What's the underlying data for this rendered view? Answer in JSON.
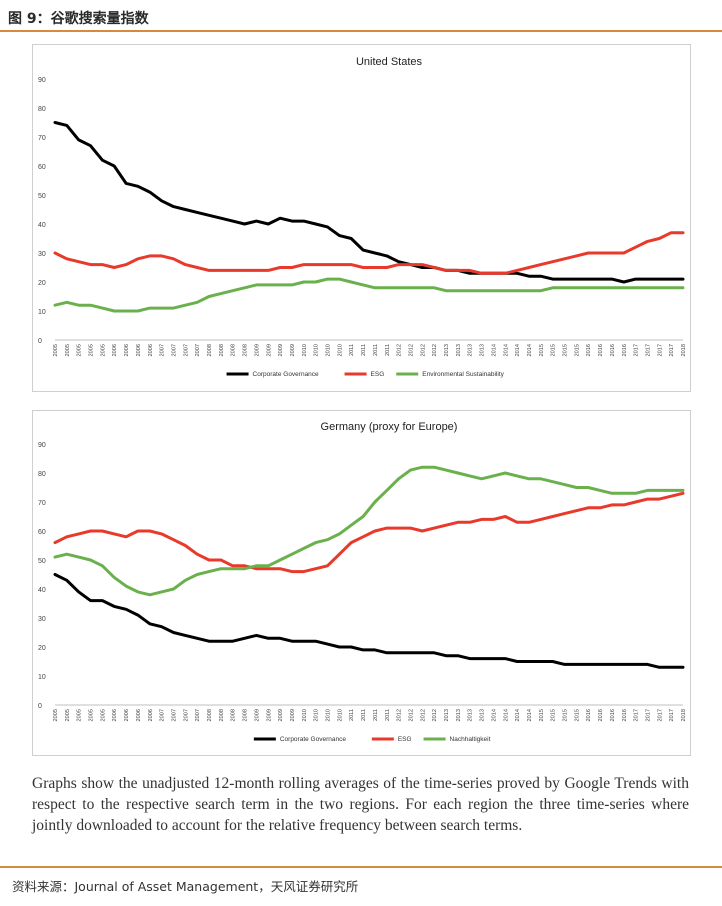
{
  "figure_title": "图 9：谷歌搜索量指数",
  "caption": "Graphs show the unadjusted 12-month rolling averages of the time-series proved by Google Trends with respect to the respective search term in the two regions. For each region the three time-series where jointly downloaded to account for the relative frequency between search terms.",
  "source": "资料来源：Journal of Asset Management，天风证券研究所",
  "colors": {
    "accent": "#d58b3d",
    "black": "#000000",
    "red": "#e8392b",
    "green": "#6ab04c"
  },
  "chart_data": [
    {
      "type": "line",
      "title": "United States",
      "ylim": [
        0,
        90
      ],
      "yticks": [
        0,
        10,
        20,
        30,
        40,
        50,
        60,
        70,
        80,
        90
      ],
      "x_tick_labels": [
        "2005",
        "2005",
        "2005",
        "2005",
        "2005",
        "2006",
        "2006",
        "2006",
        "2006",
        "2007",
        "2007",
        "2007",
        "2007",
        "2008",
        "2008",
        "2008",
        "2008",
        "2009",
        "2009",
        "2009",
        "2009",
        "2010",
        "2010",
        "2010",
        "2010",
        "2011",
        "2011",
        "2011",
        "2011",
        "2012",
        "2012",
        "2012",
        "2012",
        "2013",
        "2013",
        "2013",
        "2013",
        "2014",
        "2014",
        "2014",
        "2014",
        "2015",
        "2015",
        "2015",
        "2015",
        "2016",
        "2016",
        "2016",
        "2016",
        "2017",
        "2017",
        "2017",
        "2017",
        "2018"
      ],
      "series": [
        {
          "name": "Corporate Governance",
          "color": "#000000",
          "values": [
            75,
            74,
            69,
            67,
            62,
            60,
            54,
            53,
            51,
            48,
            46,
            45,
            44,
            43,
            42,
            41,
            40,
            41,
            40,
            42,
            41,
            41,
            40,
            39,
            36,
            35,
            31,
            30,
            29,
            27,
            26,
            25,
            25,
            24,
            24,
            23,
            23,
            23,
            23,
            23,
            22,
            22,
            21,
            21,
            21,
            21,
            21,
            21,
            20,
            21,
            21,
            21,
            21,
            21
          ]
        },
        {
          "name": "ESG",
          "color": "#e8392b",
          "values": [
            30,
            28,
            27,
            26,
            26,
            25,
            26,
            28,
            29,
            29,
            28,
            26,
            25,
            24,
            24,
            24,
            24,
            24,
            24,
            25,
            25,
            26,
            26,
            26,
            26,
            26,
            25,
            25,
            25,
            26,
            26,
            26,
            25,
            24,
            24,
            24,
            23,
            23,
            23,
            24,
            25,
            26,
            27,
            28,
            29,
            30,
            30,
            30,
            30,
            32,
            34,
            35,
            37,
            37
          ]
        },
        {
          "name": "Environmental Sustainability",
          "color": "#6ab04c",
          "values": [
            12,
            13,
            12,
            12,
            11,
            10,
            10,
            10,
            11,
            11,
            11,
            12,
            13,
            15,
            16,
            17,
            18,
            19,
            19,
            19,
            19,
            20,
            20,
            21,
            21,
            20,
            19,
            18,
            18,
            18,
            18,
            18,
            18,
            17,
            17,
            17,
            17,
            17,
            17,
            17,
            17,
            17,
            18,
            18,
            18,
            18,
            18,
            18,
            18,
            18,
            18,
            18,
            18,
            18
          ]
        }
      ]
    },
    {
      "type": "line",
      "title": "Germany (proxy for Europe)",
      "ylim": [
        0,
        90
      ],
      "yticks": [
        0,
        10,
        20,
        30,
        40,
        50,
        60,
        70,
        80,
        90
      ],
      "x_tick_labels": [
        "2005",
        "2005",
        "2005",
        "2005",
        "2005",
        "2006",
        "2006",
        "2006",
        "2006",
        "2007",
        "2007",
        "2007",
        "2007",
        "2008",
        "2008",
        "2008",
        "2008",
        "2009",
        "2009",
        "2009",
        "2009",
        "2010",
        "2010",
        "2010",
        "2010",
        "2011",
        "2011",
        "2011",
        "2011",
        "2012",
        "2012",
        "2012",
        "2012",
        "2013",
        "2013",
        "2013",
        "2013",
        "2014",
        "2014",
        "2014",
        "2014",
        "2015",
        "2015",
        "2015",
        "2015",
        "2016",
        "2016",
        "2016",
        "2016",
        "2017",
        "2017",
        "2017",
        "2017",
        "2018"
      ],
      "series": [
        {
          "name": "Corporate Governance",
          "color": "#000000",
          "values": [
            45,
            43,
            39,
            36,
            36,
            34,
            33,
            31,
            28,
            27,
            25,
            24,
            23,
            22,
            22,
            22,
            23,
            24,
            23,
            23,
            22,
            22,
            22,
            21,
            20,
            20,
            19,
            19,
            18,
            18,
            18,
            18,
            18,
            17,
            17,
            16,
            16,
            16,
            16,
            15,
            15,
            15,
            15,
            14,
            14,
            14,
            14,
            14,
            14,
            14,
            14,
            13,
            13,
            13
          ]
        },
        {
          "name": "ESG",
          "color": "#e8392b",
          "values": [
            56,
            58,
            59,
            60,
            60,
            59,
            58,
            60,
            60,
            59,
            57,
            55,
            52,
            50,
            50,
            48,
            48,
            47,
            47,
            47,
            46,
            46,
            47,
            48,
            52,
            56,
            58,
            60,
            61,
            61,
            61,
            60,
            61,
            62,
            63,
            63,
            64,
            64,
            65,
            63,
            63,
            64,
            65,
            66,
            67,
            68,
            68,
            69,
            69,
            70,
            71,
            71,
            72,
            73
          ]
        },
        {
          "name": "Nachhaltigkeit",
          "color": "#6ab04c",
          "values": [
            51,
            52,
            51,
            50,
            48,
            44,
            41,
            39,
            38,
            39,
            40,
            43,
            45,
            46,
            47,
            47,
            47,
            48,
            48,
            50,
            52,
            54,
            56,
            57,
            59,
            62,
            65,
            70,
            74,
            78,
            81,
            82,
            82,
            81,
            80,
            79,
            78,
            79,
            80,
            79,
            78,
            78,
            77,
            76,
            75,
            75,
            74,
            73,
            73,
            73,
            74,
            74,
            74,
            74
          ]
        }
      ]
    }
  ]
}
